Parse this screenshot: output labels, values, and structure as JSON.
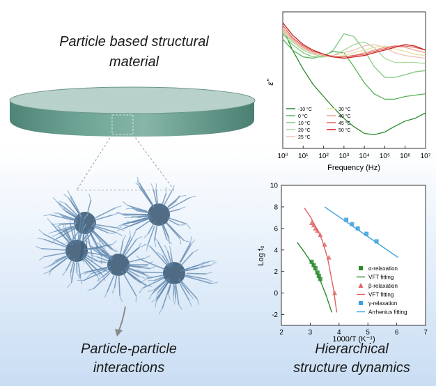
{
  "titles": {
    "top_line1": "Particle based  structural",
    "top_line2": "material",
    "bottom_left_line1": "Particle-particle",
    "bottom_left_line2": "interactions",
    "bottom_right_line1": "Hierarchical",
    "bottom_right_line2": "structure dynamics"
  },
  "colors": {
    "disk_top": "#b4cdc8",
    "disk_side": "#5f9486",
    "particle": "#5f86ad",
    "arrow": "#8a8a8a"
  },
  "chart_data": [
    {
      "type": "line",
      "xlabel": "Frequency (Hz)",
      "ylabel": "ε\"",
      "xscale": "log",
      "xlim": [
        1,
        10000000
      ],
      "x_ticks": [
        "10⁰",
        "10¹",
        "10²",
        "10³",
        "10⁴",
        "10⁵",
        "10⁶",
        "10⁷"
      ],
      "legend_placement": "bottom-left",
      "series": [
        {
          "name": "-10 °C",
          "color": "#2a8a2a",
          "x": [
            1,
            3,
            10,
            30,
            100,
            300,
            1000,
            3000,
            10000,
            30000,
            100000,
            300000,
            1000000,
            3000000,
            10000000
          ],
          "y": [
            0.88,
            0.72,
            0.58,
            0.47,
            0.38,
            0.3,
            0.22,
            0.16,
            0.11,
            0.1,
            0.12,
            0.16,
            0.2,
            0.22,
            0.26
          ]
        },
        {
          "name": "0 °C",
          "color": "#55b555",
          "x": [
            1,
            3,
            10,
            30,
            100,
            300,
            1000,
            3000,
            10000,
            30000,
            100000,
            300000,
            1000000,
            3000000,
            10000000
          ],
          "y": [
            0.8,
            0.72,
            0.67,
            0.66,
            0.68,
            0.71,
            0.7,
            0.6,
            0.48,
            0.4,
            0.36,
            0.36,
            0.38,
            0.39,
            0.4
          ]
        },
        {
          "name": "10 °C",
          "color": "#80c880",
          "x": [
            1,
            3,
            10,
            30,
            100,
            300,
            1000,
            3000,
            10000,
            30000,
            100000,
            300000,
            1000000,
            3000000,
            10000000
          ],
          "y": [
            0.84,
            0.76,
            0.7,
            0.67,
            0.67,
            0.72,
            0.84,
            0.82,
            0.72,
            0.6,
            0.52,
            0.52,
            0.54,
            0.56,
            0.57
          ]
        },
        {
          "name": "20 °C",
          "color": "#a8d898",
          "x": [
            1,
            3,
            10,
            30,
            100,
            300,
            1000,
            3000,
            10000,
            30000,
            100000,
            300000,
            1000000,
            3000000,
            10000000
          ],
          "y": [
            0.85,
            0.78,
            0.72,
            0.69,
            0.67,
            0.68,
            0.72,
            0.76,
            0.78,
            0.74,
            0.66,
            0.63,
            0.63,
            0.63,
            0.62
          ]
        },
        {
          "name": "25 °C",
          "color": "#f2c2b8",
          "x": [
            1,
            3,
            10,
            30,
            100,
            300,
            1000,
            3000,
            10000,
            30000,
            100000,
            300000,
            1000000,
            3000000,
            10000000
          ],
          "y": [
            0.86,
            0.79,
            0.73,
            0.7,
            0.68,
            0.68,
            0.7,
            0.72,
            0.75,
            0.76,
            0.74,
            0.7,
            0.68,
            0.67,
            0.66
          ]
        },
        {
          "name": "30 °C",
          "color": "#e8e0a0",
          "x": [
            1,
            3,
            10,
            30,
            100,
            300,
            1000,
            3000,
            10000,
            30000,
            100000,
            300000,
            1000000,
            3000000,
            10000000
          ],
          "y": [
            0.87,
            0.8,
            0.74,
            0.7,
            0.68,
            0.67,
            0.68,
            0.7,
            0.72,
            0.74,
            0.75,
            0.73,
            0.71,
            0.69,
            0.68
          ]
        },
        {
          "name": "40 °C",
          "color": "#f0a090",
          "x": [
            1,
            3,
            10,
            30,
            100,
            300,
            1000,
            3000,
            10000,
            30000,
            100000,
            300000,
            1000000,
            3000000,
            10000000
          ],
          "y": [
            0.88,
            0.8,
            0.74,
            0.7,
            0.68,
            0.67,
            0.67,
            0.68,
            0.7,
            0.72,
            0.74,
            0.75,
            0.74,
            0.72,
            0.7
          ]
        },
        {
          "name": "45 °C",
          "color": "#e06060",
          "x": [
            1,
            3,
            10,
            30,
            100,
            300,
            1000,
            3000,
            10000,
            30000,
            100000,
            300000,
            1000000,
            3000000,
            10000000
          ],
          "y": [
            0.9,
            0.81,
            0.75,
            0.71,
            0.69,
            0.67,
            0.67,
            0.68,
            0.69,
            0.71,
            0.73,
            0.75,
            0.75,
            0.74,
            0.72
          ]
        },
        {
          "name": "50 °C",
          "color": "#c81e1e",
          "x": [
            1,
            3,
            10,
            30,
            100,
            300,
            1000,
            3000,
            10000,
            30000,
            100000,
            300000,
            1000000,
            3000000,
            10000000
          ],
          "y": [
            0.92,
            0.83,
            0.76,
            0.72,
            0.69,
            0.67,
            0.66,
            0.67,
            0.68,
            0.7,
            0.72,
            0.74,
            0.76,
            0.75,
            0.72
          ]
        }
      ]
    },
    {
      "type": "scatter",
      "xlabel": "1000/T (K⁻¹)",
      "ylabel": "Log f₀",
      "xlim": [
        2,
        7
      ],
      "ylim": [
        -3,
        10
      ],
      "x_ticks": [
        2,
        3,
        4,
        5,
        6,
        7
      ],
      "y_ticks": [
        -2,
        0,
        2,
        4,
        6,
        8,
        10
      ],
      "legend_placement": "bottom-right",
      "series": [
        {
          "name": "α-relaxation",
          "color": "#2a8a2a",
          "marker": "square",
          "x": [
            3.05,
            3.12,
            3.18,
            3.25,
            3.3,
            3.35
          ],
          "y": [
            2.9,
            2.6,
            2.3,
            1.9,
            1.6,
            1.3
          ]
        },
        {
          "name": "VFT fitting",
          "color": "#2a8a2a",
          "marker": "line",
          "x": [
            2.55,
            2.8,
            3.05,
            3.3,
            3.55,
            3.75
          ],
          "y": [
            4.7,
            3.8,
            2.8,
            1.5,
            -0.2,
            -1.8
          ]
        },
        {
          "name": "β-relaxation",
          "color": "#e06060",
          "marker": "triangle",
          "x": [
            3.05,
            3.12,
            3.18,
            3.25,
            3.35,
            3.5,
            3.65,
            3.85
          ],
          "y": [
            6.5,
            6.3,
            6.0,
            5.8,
            5.4,
            4.5,
            3.3,
            0.0
          ]
        },
        {
          "name": "VFT fitting",
          "color": "#e06060",
          "marker": "line",
          "x": [
            2.8,
            3.0,
            3.2,
            3.4,
            3.6,
            3.8,
            3.92
          ],
          "y": [
            7.9,
            7.1,
            6.1,
            5.0,
            3.3,
            0.5,
            -1.8
          ]
        },
        {
          "name": "γ-relaxation",
          "color": "#3ba0dd",
          "marker": "square",
          "x": [
            4.25,
            4.45,
            4.65,
            4.95,
            5.3
          ],
          "y": [
            6.8,
            6.4,
            6.0,
            5.5,
            4.8
          ]
        },
        {
          "name": "Arrhenius fitting",
          "color": "#3ba0dd",
          "marker": "line",
          "x": [
            3.5,
            6.05
          ],
          "y": [
            8.0,
            3.3
          ]
        }
      ]
    }
  ]
}
